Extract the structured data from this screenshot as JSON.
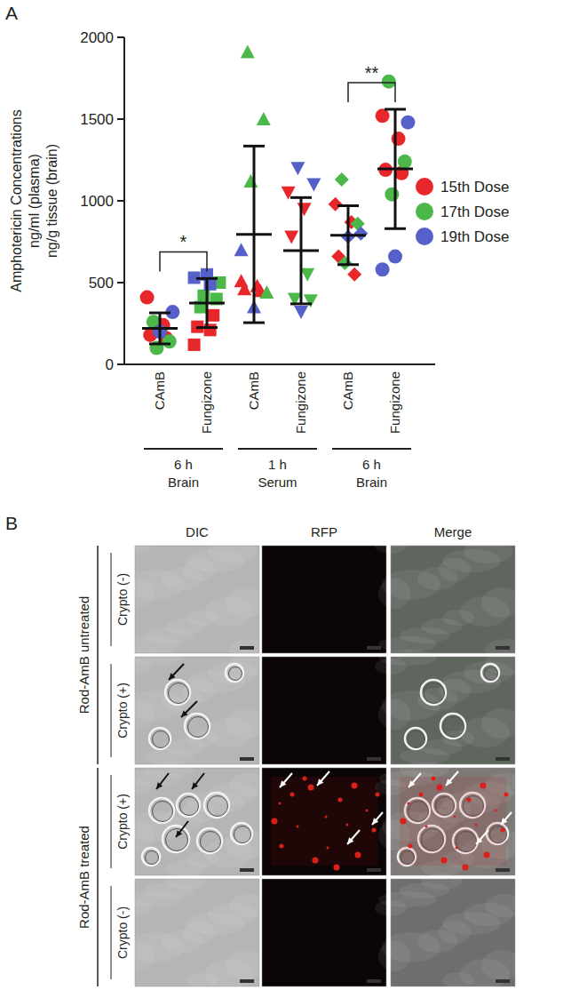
{
  "panel_a": {
    "label": "A"
  },
  "chart_data": {
    "type": "scatter",
    "y_label": [
      "Amphotericin Concentrations",
      "ng/ml (plasma)",
      "ng/g tissue (brain)"
    ],
    "categories": [
      "CAmB",
      "Fungizone",
      "CAmB",
      "Fungizone",
      "CAmB",
      "Fungizone"
    ],
    "markers": [
      "circle",
      "square",
      "triangle-up",
      "triangle-down",
      "diamond",
      "circle"
    ],
    "groups": [
      {
        "label": [
          "6 h",
          "Brain"
        ],
        "span": [
          0,
          1
        ]
      },
      {
        "label": [
          "1 h",
          "Serum"
        ],
        "span": [
          2,
          3
        ]
      },
      {
        "label": [
          "6 h",
          "Brain"
        ],
        "span": [
          4,
          5
        ]
      }
    ],
    "series": [
      {
        "name": "15th Dose",
        "color": "#e8272a",
        "values": [
          [
            410,
            240,
            180,
            160
          ],
          [
            120,
            210,
            230,
            300
          ],
          [
            510,
            480,
            460,
            450
          ],
          [
            1050,
            950,
            780
          ],
          [
            980,
            870,
            660,
            550
          ],
          [
            1520,
            1380,
            1190,
            1170
          ]
        ]
      },
      {
        "name": "17th Dose",
        "color": "#4cb84a",
        "values": [
          [
            260,
            140,
            100
          ],
          [
            350,
            400,
            420,
            500
          ],
          [
            1910,
            1500,
            1120,
            440
          ],
          [
            550,
            400,
            390
          ],
          [
            1130,
            860,
            620
          ],
          [
            1730,
            1240,
            1040
          ]
        ]
      },
      {
        "name": "19th Dose",
        "color": "#5560c8",
        "values": [
          [
            320,
            200
          ],
          [
            550,
            530,
            490
          ],
          [
            350,
            700
          ],
          [
            1200,
            1100,
            320
          ],
          [
            800,
            780
          ],
          [
            1480,
            660,
            580
          ]
        ]
      }
    ],
    "means": [
      220,
      375,
      795,
      695,
      790,
      1195
    ],
    "errors": [
      95,
      150,
      540,
      325,
      180,
      365
    ],
    "annotations": [
      {
        "text": "*",
        "between": [
          0,
          1
        ]
      },
      {
        "text": "**",
        "between": [
          4,
          5
        ]
      }
    ],
    "ylim": [
      0,
      2000
    ],
    "yticks": [
      0,
      500,
      1000,
      1500,
      2000
    ],
    "grid": false,
    "legend": "right"
  },
  "panel_b": {
    "label": "B",
    "columns": [
      "DIC",
      "RFP",
      "Merge"
    ],
    "groups": [
      {
        "label": "Rod-AmB untreated",
        "rows": [
          "Crypto (-)",
          "Crypto (+)"
        ]
      },
      {
        "label": "Rod-AmB treated",
        "rows": [
          "Crypto (+)",
          "Crypto (-)"
        ]
      }
    ]
  }
}
